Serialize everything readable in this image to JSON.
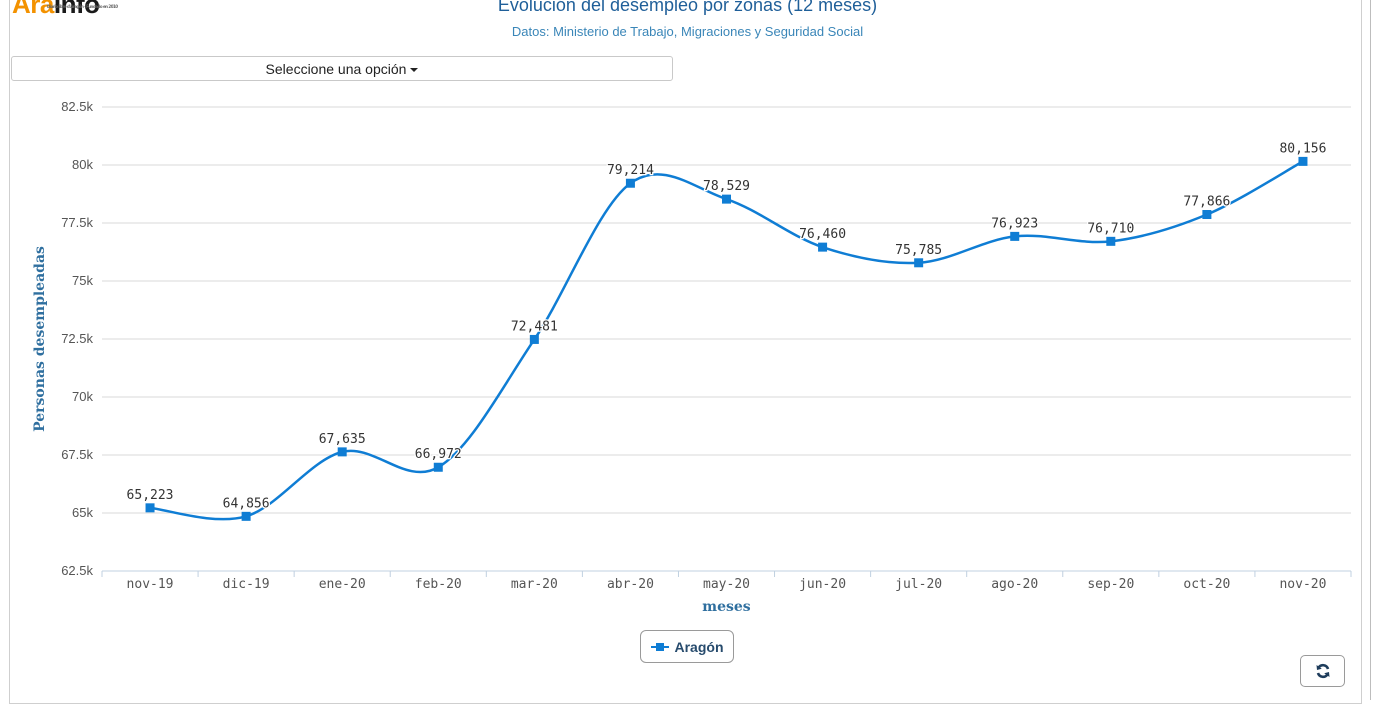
{
  "logo": {
    "text_orange": "Ara",
    "text_dark": "Info",
    "tagline": "Diario libre d'Aragón  ·  Fundado en 2010"
  },
  "header": {
    "title": "Evolución del desempleo por zonas (12 meses)",
    "subtitle": "Datos: Ministerio de Trabajo, Migraciones y Seguridad Social"
  },
  "selector": {
    "label": "Seleccione una opción"
  },
  "legend": {
    "label": "Aragón"
  },
  "refresh": {
    "icon": "refresh-icon"
  },
  "colors": {
    "series": "#0f7dd4",
    "title": "#1f5f99",
    "axis_title": "#2f6f9f",
    "grid": "#d8d8d8"
  },
  "chart_data": {
    "type": "line",
    "title": "Evolución del desempleo por zonas (12 meses)",
    "subtitle": "Datos: Ministerio de Trabajo, Migraciones y Seguridad Social",
    "xlabel": "meses",
    "ylabel": "Personas desempleadas",
    "categories": [
      "nov-19",
      "dic-19",
      "ene-20",
      "feb-20",
      "mar-20",
      "abr-20",
      "may-20",
      "jun-20",
      "jul-20",
      "ago-20",
      "sep-20",
      "oct-20",
      "nov-20"
    ],
    "series": [
      {
        "name": "Aragón",
        "values": [
          65223,
          64856,
          67635,
          66972,
          72481,
          79214,
          78529,
          76460,
          75785,
          76923,
          76710,
          77866,
          80156
        ],
        "labels": [
          "65,223",
          "64,856",
          "67,635",
          "66,972",
          "72,481",
          "79,214",
          "78,529",
          "76,460",
          "75,785",
          "76,923",
          "76,710",
          "77,866",
          "80,156"
        ]
      }
    ],
    "ylim": [
      62500,
      82500
    ],
    "yticks": [
      62500,
      65000,
      67500,
      70000,
      72500,
      75000,
      77500,
      80000,
      82500
    ],
    "ytick_labels": [
      "62.5k",
      "65k",
      "67.5k",
      "70k",
      "72.5k",
      "75k",
      "77.5k",
      "80k",
      "82.5k"
    ],
    "grid": true,
    "legend_position": "bottom-center"
  }
}
